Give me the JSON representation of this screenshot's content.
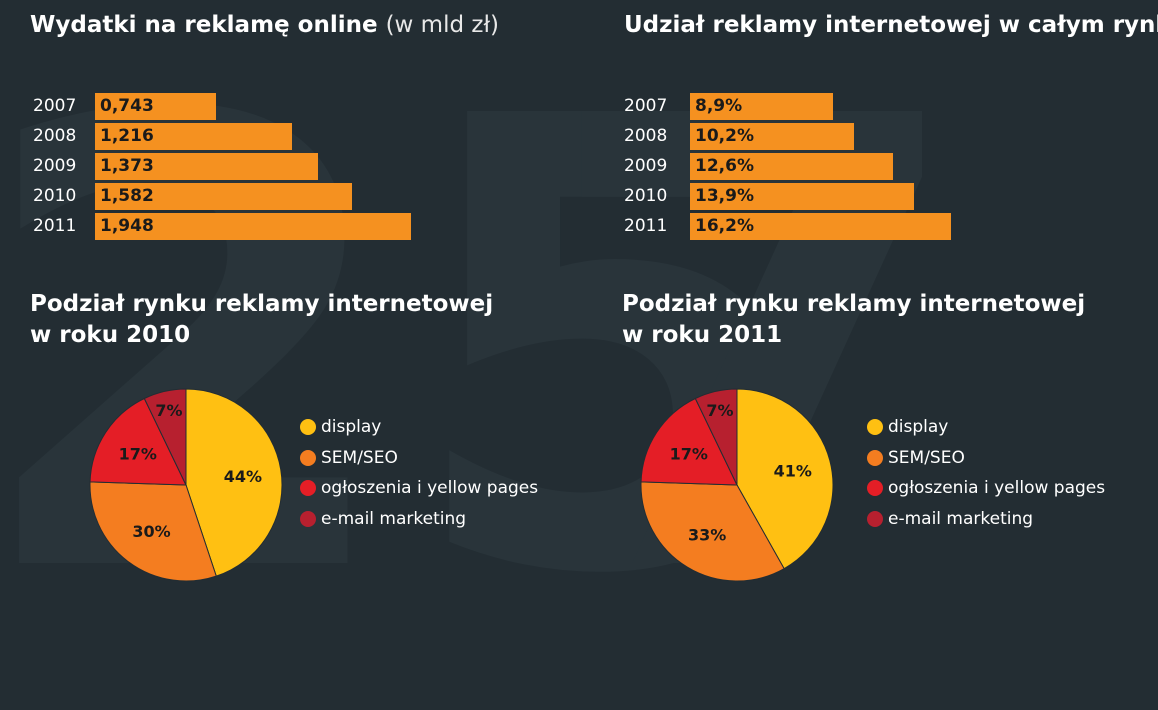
{
  "colors": {
    "background": "#232d33",
    "bar": "#f59120",
    "display": "#ffc012",
    "sem_seo": "#f47d20",
    "ogloszenia": "#e41e26",
    "email": "#b7202f"
  },
  "background_glyphs": [
    "25",
    "7"
  ],
  "chart_data": [
    {
      "type": "bar",
      "orientation": "horizontal",
      "title": "Wydatki na reklamę online",
      "subtitle": "(w mld zł)",
      "categories": [
        "2007",
        "2008",
        "2009",
        "2010",
        "2011"
      ],
      "values": [
        0.743,
        1.216,
        1.373,
        1.582,
        1.948
      ],
      "value_labels": [
        "0,743",
        "1,216",
        "1,373",
        "1,582",
        "1,948"
      ],
      "xlim": [
        0,
        2
      ]
    },
    {
      "type": "bar",
      "orientation": "horizontal",
      "title": "Udział reklamy internetowej w całym rynku",
      "categories": [
        "2007",
        "2008",
        "2009",
        "2010",
        "2011"
      ],
      "values": [
        8.9,
        10.2,
        12.6,
        13.9,
        16.2
      ],
      "value_labels": [
        "8,9%",
        "10,2%",
        "12,6%",
        "13,9%",
        "16,2%"
      ],
      "xlim": [
        0,
        17
      ]
    },
    {
      "type": "pie",
      "title_line1": "Podział rynku reklamy internetowej",
      "title_line2": "w roku 2010",
      "labels": [
        "display",
        "SEM/SEO",
        "ogłoszenia i yellow pages",
        "e-mail marketing"
      ],
      "values": [
        44,
        30,
        17,
        7
      ],
      "value_labels": [
        "44%",
        "30%",
        "17%",
        "7%"
      ],
      "colors": [
        "#ffc012",
        "#f47d20",
        "#e41e26",
        "#b7202f"
      ]
    },
    {
      "type": "pie",
      "title_line1": "Podział rynku reklamy internetowej",
      "title_line2": "w roku 2011",
      "labels": [
        "display",
        "SEM/SEO",
        "ogłoszenia i yellow pages",
        "e-mail marketing"
      ],
      "values": [
        41,
        33,
        17,
        7
      ],
      "value_labels": [
        "41%",
        "33%",
        "17%",
        "7%"
      ],
      "colors": [
        "#ffc012",
        "#f47d20",
        "#e41e26",
        "#b7202f"
      ]
    }
  ]
}
